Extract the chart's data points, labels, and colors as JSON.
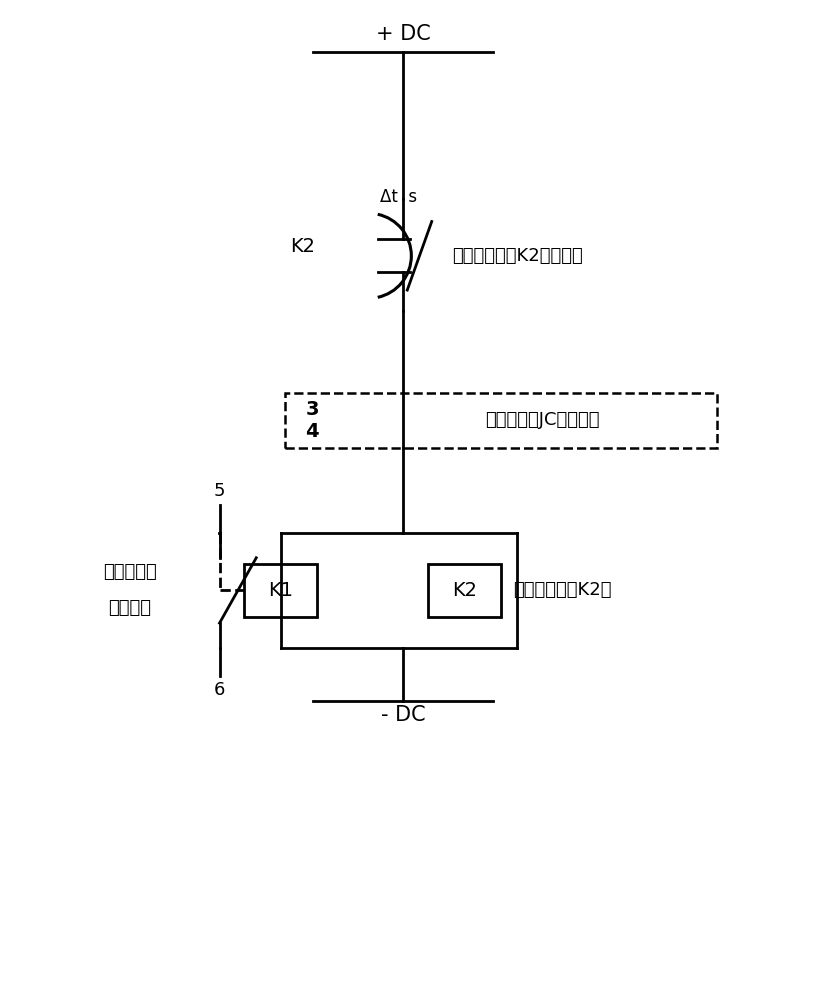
{
  "bg_color": "#ffffff",
  "line_color": "#000000",
  "lw": 2.0,
  "fig_width": 8.39,
  "fig_height": 9.85,
  "dpi": 100,
  "plus_dc": "+ DC",
  "minus_dc": "- DC",
  "k2_nc_label_left": "K2",
  "relay_nc_label": "时间继电器（K2）常闭点",
  "delta_ts": "Δt  s",
  "terminal3": "3",
  "terminal4": "4",
  "jc_label": "监测电路（JC）常开点",
  "terminal5": "5",
  "terminal6": "6",
  "signal_line1": "过电压动作",
  "signal_line2": "信号输出",
  "k1_text": "K1",
  "k2_text": "K2",
  "k2_coil_label": "时间继电器（K2）"
}
